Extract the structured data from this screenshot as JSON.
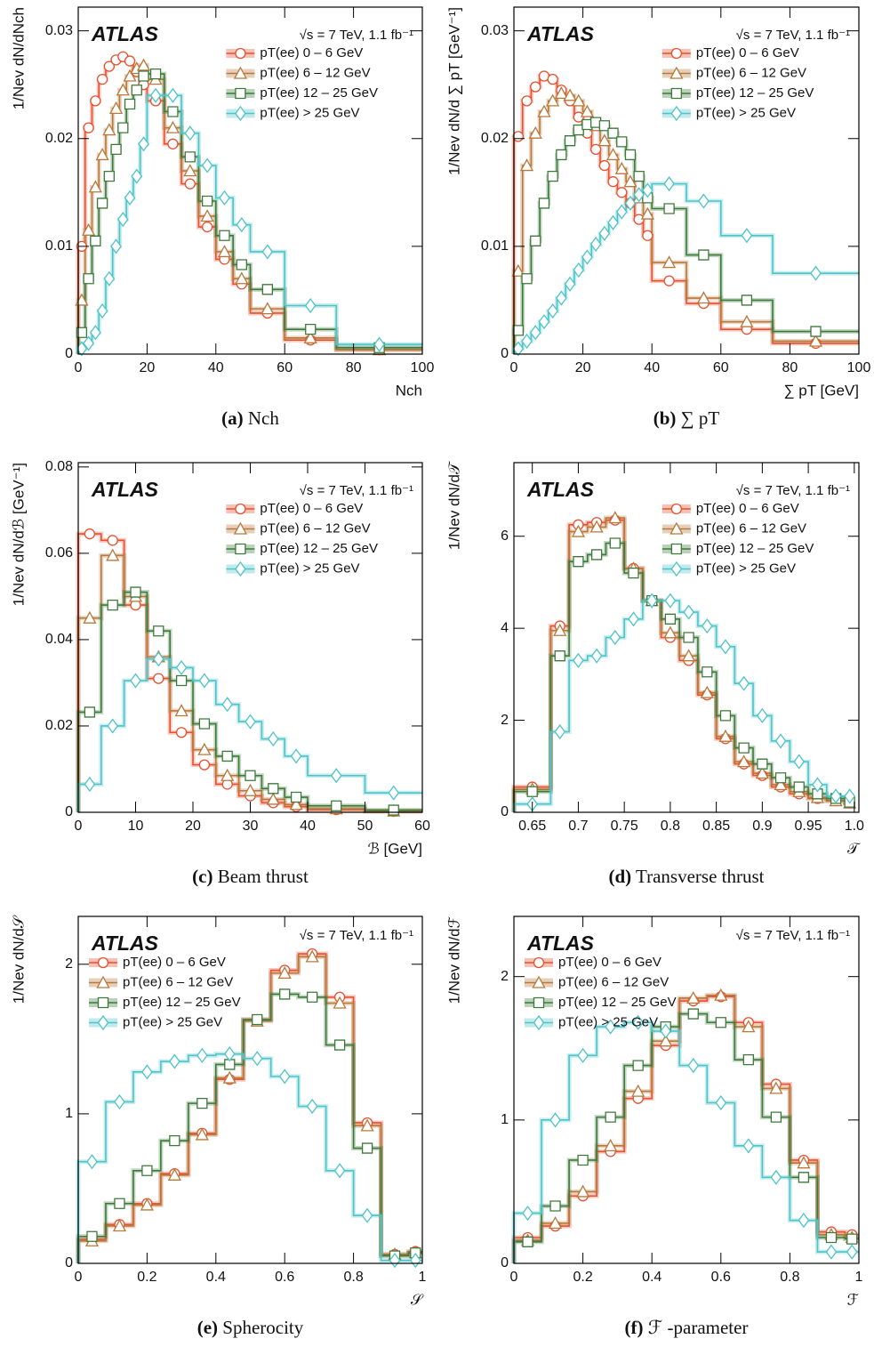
{
  "chart_data": [
    {
      "type": "histogram",
      "atlas": "ATLAS",
      "energy": "√s = 7 TeV, 1.1 fb⁻¹",
      "caption_label": "(a)",
      "caption": "Nch",
      "xlabel": "Nch",
      "ylabel": "1/Nev dN/dNch",
      "legend": "upper right",
      "xlim": [
        0,
        100
      ],
      "ylim": [
        0,
        0.0322
      ],
      "xticks": [
        0,
        20,
        40,
        60,
        80,
        100
      ],
      "yticks": [
        0,
        0.01,
        0.02,
        0.03
      ],
      "bins": [
        0,
        2,
        4,
        6,
        8,
        10,
        12,
        14,
        16,
        18,
        20,
        25,
        30,
        35,
        40,
        45,
        50,
        60,
        75,
        100
      ],
      "series": [
        {
          "name": "pT(ee) 0 – 6  GeV",
          "color": "#e8502f",
          "marker": "circle",
          "values": [
            0.01,
            0.021,
            0.0235,
            0.0255,
            0.0267,
            0.0273,
            0.0276,
            0.0272,
            0.0262,
            0.025,
            0.0235,
            0.0195,
            0.0158,
            0.0118,
            0.0088,
            0.0065,
            0.0038,
            0.0013,
            0.0004
          ]
        },
        {
          "name": "pT(ee) 6 – 12  GeV",
          "color": "#b8783a",
          "marker": "triangle",
          "values": [
            0.005,
            0.0115,
            0.0155,
            0.0185,
            0.0208,
            0.0228,
            0.0245,
            0.0258,
            0.0265,
            0.0268,
            0.0255,
            0.021,
            0.017,
            0.0128,
            0.0095,
            0.007,
            0.0042,
            0.0015,
            0.0004
          ]
        },
        {
          "name": "pT(ee) 12 – 25  GeV",
          "color": "#3d7a3a",
          "marker": "square",
          "values": [
            0.002,
            0.007,
            0.0105,
            0.014,
            0.0165,
            0.019,
            0.021,
            0.0232,
            0.0245,
            0.0258,
            0.026,
            0.0225,
            0.0183,
            0.0142,
            0.011,
            0.0083,
            0.006,
            0.0023,
            0.0006
          ]
        },
        {
          "name": "pT(ee)  > 25  GeV",
          "color": "#4cc4c8",
          "marker": "diamond",
          "values": [
            0.0005,
            0.001,
            0.002,
            0.004,
            0.007,
            0.01,
            0.0125,
            0.0145,
            0.0165,
            0.0195,
            0.024,
            0.024,
            0.0205,
            0.0175,
            0.0145,
            0.012,
            0.0095,
            0.0045,
            0.0009
          ]
        }
      ]
    },
    {
      "type": "histogram",
      "atlas": "ATLAS",
      "energy": "√s = 7 TeV, 1.1 fb⁻¹",
      "caption_label": "(b)",
      "caption": "∑ pT",
      "xlabel": "∑ pT [GeV]",
      "ylabel": "1/Nev dN/d ∑ pT [GeV⁻¹]",
      "legend": "upper right",
      "xlim": [
        0,
        100
      ],
      "ylim": [
        0,
        0.0322
      ],
      "xticks": [
        0,
        20,
        40,
        60,
        80,
        100
      ],
      "yticks": [
        0,
        0.01,
        0.02,
        0.03
      ],
      "bins": [
        0,
        2.5,
        5,
        7.5,
        10,
        12.5,
        15,
        17.5,
        20,
        22.5,
        25,
        27.5,
        30,
        32.5,
        35,
        37.5,
        40,
        50,
        60,
        75,
        100
      ],
      "series": [
        {
          "name": "pT(ee) 0 – 6  GeV",
          "color": "#e8502f",
          "marker": "circle",
          "values": [
            0.0202,
            0.0235,
            0.0248,
            0.0258,
            0.0255,
            0.0245,
            0.0235,
            0.022,
            0.0205,
            0.019,
            0.0175,
            0.016,
            0.015,
            0.014,
            0.0125,
            0.011,
            0.0068,
            0.0047,
            0.0023,
            0.001
          ]
        },
        {
          "name": "pT(ee) 6 – 12  GeV",
          "color": "#b8783a",
          "marker": "triangle",
          "values": [
            0.0077,
            0.0175,
            0.0205,
            0.0225,
            0.0235,
            0.0242,
            0.024,
            0.0235,
            0.0225,
            0.0212,
            0.0198,
            0.0185,
            0.0172,
            0.016,
            0.0145,
            0.013,
            0.0085,
            0.0052,
            0.003,
            0.0012
          ]
        },
        {
          "name": "pT(ee) 12 – 25  GeV",
          "color": "#3d7a3a",
          "marker": "square",
          "values": [
            0.0022,
            0.007,
            0.0105,
            0.014,
            0.0165,
            0.0185,
            0.0198,
            0.0208,
            0.0213,
            0.0215,
            0.0212,
            0.0205,
            0.0197,
            0.0185,
            0.0165,
            0.0145,
            0.0135,
            0.0092,
            0.005,
            0.0021
          ]
        },
        {
          "name": "pT(ee)  > 25  GeV",
          "color": "#4cc4c8",
          "marker": "diamond",
          "values": [
            0.0005,
            0.0012,
            0.002,
            0.003,
            0.004,
            0.0052,
            0.0065,
            0.0078,
            0.009,
            0.0102,
            0.0112,
            0.0122,
            0.0132,
            0.014,
            0.0148,
            0.0152,
            0.0158,
            0.0142,
            0.011,
            0.0075
          ]
        }
      ]
    },
    {
      "type": "histogram",
      "atlas": "ATLAS",
      "energy": "√s = 7 TeV, 1.1 fb⁻¹",
      "caption_label": "(c)",
      "caption": "Beam thrust",
      "xlabel": "ℬ [GeV]",
      "ylabel": "1/Nev dN/dℬ [GeV⁻¹]",
      "legend": "upper right",
      "xlim": [
        0,
        60
      ],
      "ylim": [
        0,
        0.081
      ],
      "xticks": [
        0,
        10,
        20,
        30,
        40,
        50,
        60
      ],
      "yticks": [
        0,
        0.02,
        0.04,
        0.06,
        0.08
      ],
      "bins": [
        0,
        4,
        8,
        12,
        16,
        20,
        24,
        28,
        32,
        36,
        40,
        50,
        60
      ],
      "series": [
        {
          "name": "pT(ee) 0 – 6  GeV",
          "color": "#e8502f",
          "marker": "circle",
          "values": [
            0.0645,
            0.063,
            0.048,
            0.031,
            0.0185,
            0.011,
            0.0065,
            0.0038,
            0.0022,
            0.0013,
            0.0006,
            0.0002
          ]
        },
        {
          "name": "pT(ee) 6 – 12  GeV",
          "color": "#b8783a",
          "marker": "triangle",
          "values": [
            0.045,
            0.0595,
            0.05,
            0.036,
            0.0235,
            0.0145,
            0.0085,
            0.005,
            0.003,
            0.0018,
            0.0008,
            0.0003
          ]
        },
        {
          "name": "pT(ee) 12 – 25  GeV",
          "color": "#3d7a3a",
          "marker": "square",
          "values": [
            0.0232,
            0.048,
            0.051,
            0.042,
            0.0305,
            0.0205,
            0.013,
            0.0085,
            0.0055,
            0.0035,
            0.0015,
            0.0005
          ]
        },
        {
          "name": "pT(ee)  > 25  GeV",
          "color": "#4cc4c8",
          "marker": "diamond",
          "values": [
            0.0065,
            0.02,
            0.0305,
            0.0355,
            0.0335,
            0.0305,
            0.025,
            0.021,
            0.017,
            0.013,
            0.0085,
            0.0045
          ]
        }
      ]
    },
    {
      "type": "histogram",
      "atlas": "ATLAS",
      "energy": "√s = 7 TeV, 1.1 fb⁻¹",
      "caption_label": "(d)",
      "caption": "Transverse thrust",
      "xlabel": "𝒯",
      "ylabel": "1/Nev dN/d𝒯",
      "legend": "upper right",
      "xlim": [
        0.63,
        1.005
      ],
      "ylim": [
        0,
        7.6
      ],
      "xticks": [
        0.65,
        0.7,
        0.75,
        0.8,
        0.85,
        0.9,
        0.95,
        {
          "value": 1,
          "label": "1.0"
        }
      ],
      "yticks": [
        0,
        2,
        4,
        6
      ],
      "bins": [
        0.63,
        0.67,
        0.69,
        0.71,
        0.73,
        0.75,
        0.77,
        0.79,
        0.81,
        0.83,
        0.85,
        0.87,
        0.89,
        0.91,
        0.93,
        0.95,
        0.97,
        0.99,
        1.0
      ],
      "series": [
        {
          "name": "pT(ee) 0 – 6  GeV",
          "color": "#e8502f",
          "marker": "circle",
          "values": [
            0.55,
            4.05,
            6.25,
            6.3,
            6.35,
            5.3,
            4.6,
            3.8,
            3.3,
            2.55,
            1.6,
            1.05,
            0.8,
            0.55,
            0.4,
            0.3,
            0.25,
            0.2
          ]
        },
        {
          "name": "pT(ee) 6 – 12  GeV",
          "color": "#b8783a",
          "marker": "triangle",
          "values": [
            0.5,
            3.95,
            6.1,
            6.2,
            6.4,
            5.3,
            4.6,
            3.9,
            3.4,
            2.6,
            1.65,
            1.1,
            0.85,
            0.6,
            0.45,
            0.32,
            0.25,
            0.2
          ]
        },
        {
          "name": "pT(ee) 12 – 25  GeV",
          "color": "#3d7a3a",
          "marker": "square",
          "values": [
            0.45,
            3.4,
            5.45,
            5.6,
            5.85,
            5.2,
            4.6,
            4.2,
            3.8,
            3.05,
            2.1,
            1.4,
            1.05,
            0.75,
            0.55,
            0.4,
            0.3,
            0.22
          ]
        },
        {
          "name": "pT(ee)  > 25  GeV",
          "color": "#4cc4c8",
          "marker": "diamond",
          "values": [
            0.18,
            1.75,
            3.3,
            3.4,
            3.8,
            4.2,
            4.6,
            4.6,
            4.35,
            4.05,
            3.6,
            2.8,
            2.1,
            1.55,
            1.1,
            0.6,
            0.35,
            0.35
          ]
        }
      ]
    },
    {
      "type": "histogram",
      "atlas": "ATLAS",
      "energy": "√s = 7 TeV, 1.1 fb⁻¹",
      "caption_label": "(e)",
      "caption": "Spherocity",
      "xlabel": "𝒮",
      "ylabel": "1/Nev dN/d𝒮",
      "legend": "upper left",
      "xlim": [
        0,
        1
      ],
      "ylim": [
        0,
        2.32
      ],
      "xticks": [
        0,
        0.2,
        0.4,
        0.6,
        0.8,
        1
      ],
      "yticks": [
        0,
        1,
        2
      ],
      "bins": [
        0,
        0.08,
        0.16,
        0.24,
        0.32,
        0.4,
        0.48,
        0.56,
        0.64,
        0.72,
        0.8,
        0.88,
        0.96,
        1
      ],
      "series": [
        {
          "name": "pT(ee) 0 – 6  GeV",
          "color": "#e8502f",
          "marker": "circle",
          "values": [
            0.16,
            0.26,
            0.4,
            0.6,
            0.87,
            1.23,
            1.63,
            1.96,
            2.07,
            1.78,
            0.94,
            0.06,
            0.08
          ]
        },
        {
          "name": "pT(ee) 6 – 12  GeV",
          "color": "#b8783a",
          "marker": "triangle",
          "values": [
            0.15,
            0.25,
            0.39,
            0.59,
            0.86,
            1.24,
            1.62,
            1.94,
            2.05,
            1.74,
            0.92,
            0.06,
            0.07
          ]
        },
        {
          "name": "pT(ee) 12 – 25  GeV",
          "color": "#3d7a3a",
          "marker": "square",
          "values": [
            0.18,
            0.4,
            0.62,
            0.82,
            1.07,
            1.33,
            1.63,
            1.8,
            1.78,
            1.46,
            0.77,
            0.05,
            0.07
          ]
        },
        {
          "name": "pT(ee)  > 25  GeV",
          "color": "#4cc4c8",
          "marker": "diamond",
          "values": [
            0.68,
            1.08,
            1.28,
            1.35,
            1.39,
            1.4,
            1.37,
            1.25,
            1.05,
            0.62,
            0.32,
            0.02,
            0.02
          ]
        }
      ]
    },
    {
      "type": "histogram",
      "atlas": "ATLAS",
      "energy": "√s = 7 TeV, 1.1 fb⁻¹",
      "caption_label": "(f)",
      "caption": "ℱ -parameter",
      "xlabel": "ℱ",
      "ylabel": "1/Nev dN/dℱ",
      "legend": "upper left",
      "xlim": [
        0,
        1
      ],
      "ylim": [
        0,
        2.42
      ],
      "xticks": [
        0,
        0.2,
        0.4,
        0.6,
        0.8,
        1
      ],
      "yticks": [
        0,
        1,
        2
      ],
      "bins": [
        0,
        0.08,
        0.16,
        0.24,
        0.32,
        0.4,
        0.48,
        0.56,
        0.64,
        0.72,
        0.8,
        0.88,
        0.96,
        1
      ],
      "series": [
        {
          "name": "pT(ee) 0 – 6  GeV",
          "color": "#e8502f",
          "marker": "circle",
          "values": [
            0.18,
            0.26,
            0.47,
            0.78,
            1.15,
            1.52,
            1.83,
            1.86,
            1.68,
            1.25,
            0.72,
            0.22,
            0.2
          ]
        },
        {
          "name": "pT(ee) 6 – 12  GeV",
          "color": "#b8783a",
          "marker": "triangle",
          "values": [
            0.16,
            0.28,
            0.5,
            0.82,
            1.2,
            1.55,
            1.85,
            1.87,
            1.65,
            1.22,
            0.7,
            0.2,
            0.18
          ]
        },
        {
          "name": "pT(ee) 12 – 25  GeV",
          "color": "#3d7a3a",
          "marker": "square",
          "values": [
            0.15,
            0.4,
            0.72,
            1.02,
            1.38,
            1.65,
            1.74,
            1.68,
            1.42,
            1.02,
            0.6,
            0.18,
            0.17
          ]
        },
        {
          "name": "pT(ee)  > 25  GeV",
          "color": "#4cc4c8",
          "marker": "diamond",
          "values": [
            0.35,
            1.0,
            1.45,
            1.65,
            1.68,
            1.62,
            1.38,
            1.12,
            0.82,
            0.6,
            0.3,
            0.08,
            0.08
          ]
        }
      ]
    }
  ]
}
